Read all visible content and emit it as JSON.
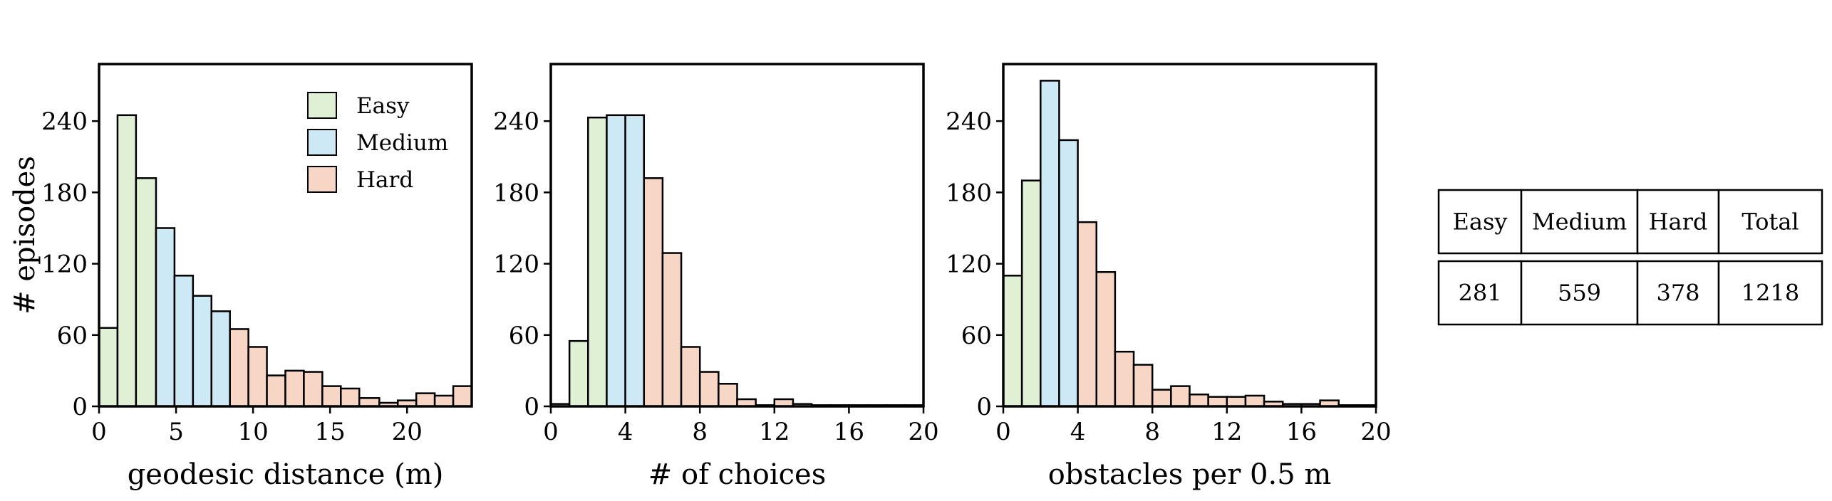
{
  "colors": {
    "Easy": "#dff0d5",
    "Medium": "#cde9f5",
    "Hard": "#f8d6c6"
  },
  "chart_data": [
    {
      "type": "bar",
      "xlabel": "geodesic distance (m)",
      "ylabel": "# episodes",
      "xlim": [
        0,
        24.2
      ],
      "ylim": [
        0,
        288
      ],
      "xticks": [
        0,
        5,
        10,
        15,
        20
      ],
      "yticks": [
        0,
        60,
        120,
        180,
        240
      ],
      "legend": {
        "position": "top-right",
        "entries": [
          "Easy",
          "Medium",
          "Hard"
        ]
      },
      "bins": [
        {
          "x0": 0.0,
          "x1": 1.2,
          "value": 66,
          "difficulty": "Easy"
        },
        {
          "x0": 1.2,
          "x1": 2.4,
          "value": 245,
          "difficulty": "Easy"
        },
        {
          "x0": 2.4,
          "x1": 3.7,
          "value": 192,
          "difficulty": "Easy"
        },
        {
          "x0": 3.7,
          "x1": 4.9,
          "value": 150,
          "difficulty": "Medium"
        },
        {
          "x0": 4.9,
          "x1": 6.1,
          "value": 110,
          "difficulty": "Medium"
        },
        {
          "x0": 6.1,
          "x1": 7.3,
          "value": 93,
          "difficulty": "Medium"
        },
        {
          "x0": 7.3,
          "x1": 8.5,
          "value": 80,
          "difficulty": "Medium"
        },
        {
          "x0": 8.5,
          "x1": 9.7,
          "value": 65,
          "difficulty": "Hard"
        },
        {
          "x0": 9.7,
          "x1": 10.9,
          "value": 50,
          "difficulty": "Hard"
        },
        {
          "x0": 10.9,
          "x1": 12.1,
          "value": 26,
          "difficulty": "Hard"
        },
        {
          "x0": 12.1,
          "x1": 13.3,
          "value": 30,
          "difficulty": "Hard"
        },
        {
          "x0": 13.3,
          "x1": 14.5,
          "value": 29,
          "difficulty": "Hard"
        },
        {
          "x0": 14.5,
          "x1": 15.7,
          "value": 17,
          "difficulty": "Hard"
        },
        {
          "x0": 15.7,
          "x1": 16.9,
          "value": 15,
          "difficulty": "Hard"
        },
        {
          "x0": 16.9,
          "x1": 18.2,
          "value": 7,
          "difficulty": "Hard"
        },
        {
          "x0": 18.2,
          "x1": 19.4,
          "value": 3,
          "difficulty": "Hard"
        },
        {
          "x0": 19.4,
          "x1": 20.6,
          "value": 5,
          "difficulty": "Hard"
        },
        {
          "x0": 20.6,
          "x1": 21.8,
          "value": 11,
          "difficulty": "Hard"
        },
        {
          "x0": 21.8,
          "x1": 23.0,
          "value": 9,
          "difficulty": "Hard"
        },
        {
          "x0": 23.0,
          "x1": 24.2,
          "value": 17,
          "difficulty": "Hard"
        }
      ]
    },
    {
      "type": "bar",
      "xlabel": "# of choices",
      "ylabel": "",
      "xlim": [
        0,
        20
      ],
      "ylim": [
        0,
        288
      ],
      "xticks": [
        0,
        4,
        8,
        12,
        16,
        20
      ],
      "yticks": [
        0,
        60,
        120,
        180,
        240
      ],
      "bins": [
        {
          "x0": 0,
          "x1": 1,
          "value": 2,
          "difficulty": "Easy"
        },
        {
          "x0": 1,
          "x1": 2,
          "value": 55,
          "difficulty": "Easy"
        },
        {
          "x0": 2,
          "x1": 3,
          "value": 243,
          "difficulty": "Easy"
        },
        {
          "x0": 3,
          "x1": 4,
          "value": 245,
          "difficulty": "Medium"
        },
        {
          "x0": 4,
          "x1": 5,
          "value": 245,
          "difficulty": "Medium"
        },
        {
          "x0": 5,
          "x1": 6,
          "value": 192,
          "difficulty": "Hard"
        },
        {
          "x0": 6,
          "x1": 7,
          "value": 129,
          "difficulty": "Hard"
        },
        {
          "x0": 7,
          "x1": 8,
          "value": 50,
          "difficulty": "Hard"
        },
        {
          "x0": 8,
          "x1": 9,
          "value": 29,
          "difficulty": "Hard"
        },
        {
          "x0": 9,
          "x1": 10,
          "value": 19,
          "difficulty": "Hard"
        },
        {
          "x0": 10,
          "x1": 11,
          "value": 6,
          "difficulty": "Hard"
        },
        {
          "x0": 11,
          "x1": 12,
          "value": 1,
          "difficulty": "Hard"
        },
        {
          "x0": 12,
          "x1": 13,
          "value": 6,
          "difficulty": "Hard"
        },
        {
          "x0": 13,
          "x1": 14,
          "value": 2,
          "difficulty": "Hard"
        },
        {
          "x0": 14,
          "x1": 15,
          "value": 1,
          "difficulty": "Hard"
        },
        {
          "x0": 15,
          "x1": 16,
          "value": 1,
          "difficulty": "Hard"
        },
        {
          "x0": 16,
          "x1": 17,
          "value": 1,
          "difficulty": "Hard"
        },
        {
          "x0": 17,
          "x1": 18,
          "value": 1,
          "difficulty": "Hard"
        },
        {
          "x0": 18,
          "x1": 19,
          "value": 1,
          "difficulty": "Hard"
        },
        {
          "x0": 19,
          "x1": 20,
          "value": 1,
          "difficulty": "Hard"
        }
      ]
    },
    {
      "type": "bar",
      "xlabel": "obstacles per 0.5 m",
      "ylabel": "",
      "xlim": [
        0,
        20
      ],
      "ylim": [
        0,
        288
      ],
      "xticks": [
        0,
        4,
        8,
        12,
        16,
        20
      ],
      "yticks": [
        0,
        60,
        120,
        180,
        240
      ],
      "bins": [
        {
          "x0": 0,
          "x1": 1,
          "value": 110,
          "difficulty": "Easy"
        },
        {
          "x0": 1,
          "x1": 2,
          "value": 190,
          "difficulty": "Easy"
        },
        {
          "x0": 2,
          "x1": 3,
          "value": 274,
          "difficulty": "Medium"
        },
        {
          "x0": 3,
          "x1": 4,
          "value": 224,
          "difficulty": "Medium"
        },
        {
          "x0": 4,
          "x1": 5,
          "value": 155,
          "difficulty": "Hard"
        },
        {
          "x0": 5,
          "x1": 6,
          "value": 113,
          "difficulty": "Hard"
        },
        {
          "x0": 6,
          "x1": 7,
          "value": 46,
          "difficulty": "Hard"
        },
        {
          "x0": 7,
          "x1": 8,
          "value": 35,
          "difficulty": "Hard"
        },
        {
          "x0": 8,
          "x1": 9,
          "value": 14,
          "difficulty": "Hard"
        },
        {
          "x0": 9,
          "x1": 10,
          "value": 17,
          "difficulty": "Hard"
        },
        {
          "x0": 10,
          "x1": 11,
          "value": 10,
          "difficulty": "Hard"
        },
        {
          "x0": 11,
          "x1": 12,
          "value": 8,
          "difficulty": "Hard"
        },
        {
          "x0": 12,
          "x1": 13,
          "value": 8,
          "difficulty": "Hard"
        },
        {
          "x0": 13,
          "x1": 14,
          "value": 9,
          "difficulty": "Hard"
        },
        {
          "x0": 14,
          "x1": 15,
          "value": 4,
          "difficulty": "Hard"
        },
        {
          "x0": 15,
          "x1": 16,
          "value": 2,
          "difficulty": "Hard"
        },
        {
          "x0": 16,
          "x1": 17,
          "value": 2,
          "difficulty": "Hard"
        },
        {
          "x0": 17,
          "x1": 18,
          "value": 5,
          "difficulty": "Hard"
        },
        {
          "x0": 18,
          "x1": 19,
          "value": 1,
          "difficulty": "Hard"
        },
        {
          "x0": 19,
          "x1": 20,
          "value": 1,
          "difficulty": "Hard"
        }
      ]
    },
    {
      "type": "table",
      "headers": [
        "Easy",
        "Medium",
        "Hard",
        "Total"
      ],
      "rows": [
        [
          "281",
          "559",
          "378",
          "1218"
        ]
      ]
    }
  ]
}
